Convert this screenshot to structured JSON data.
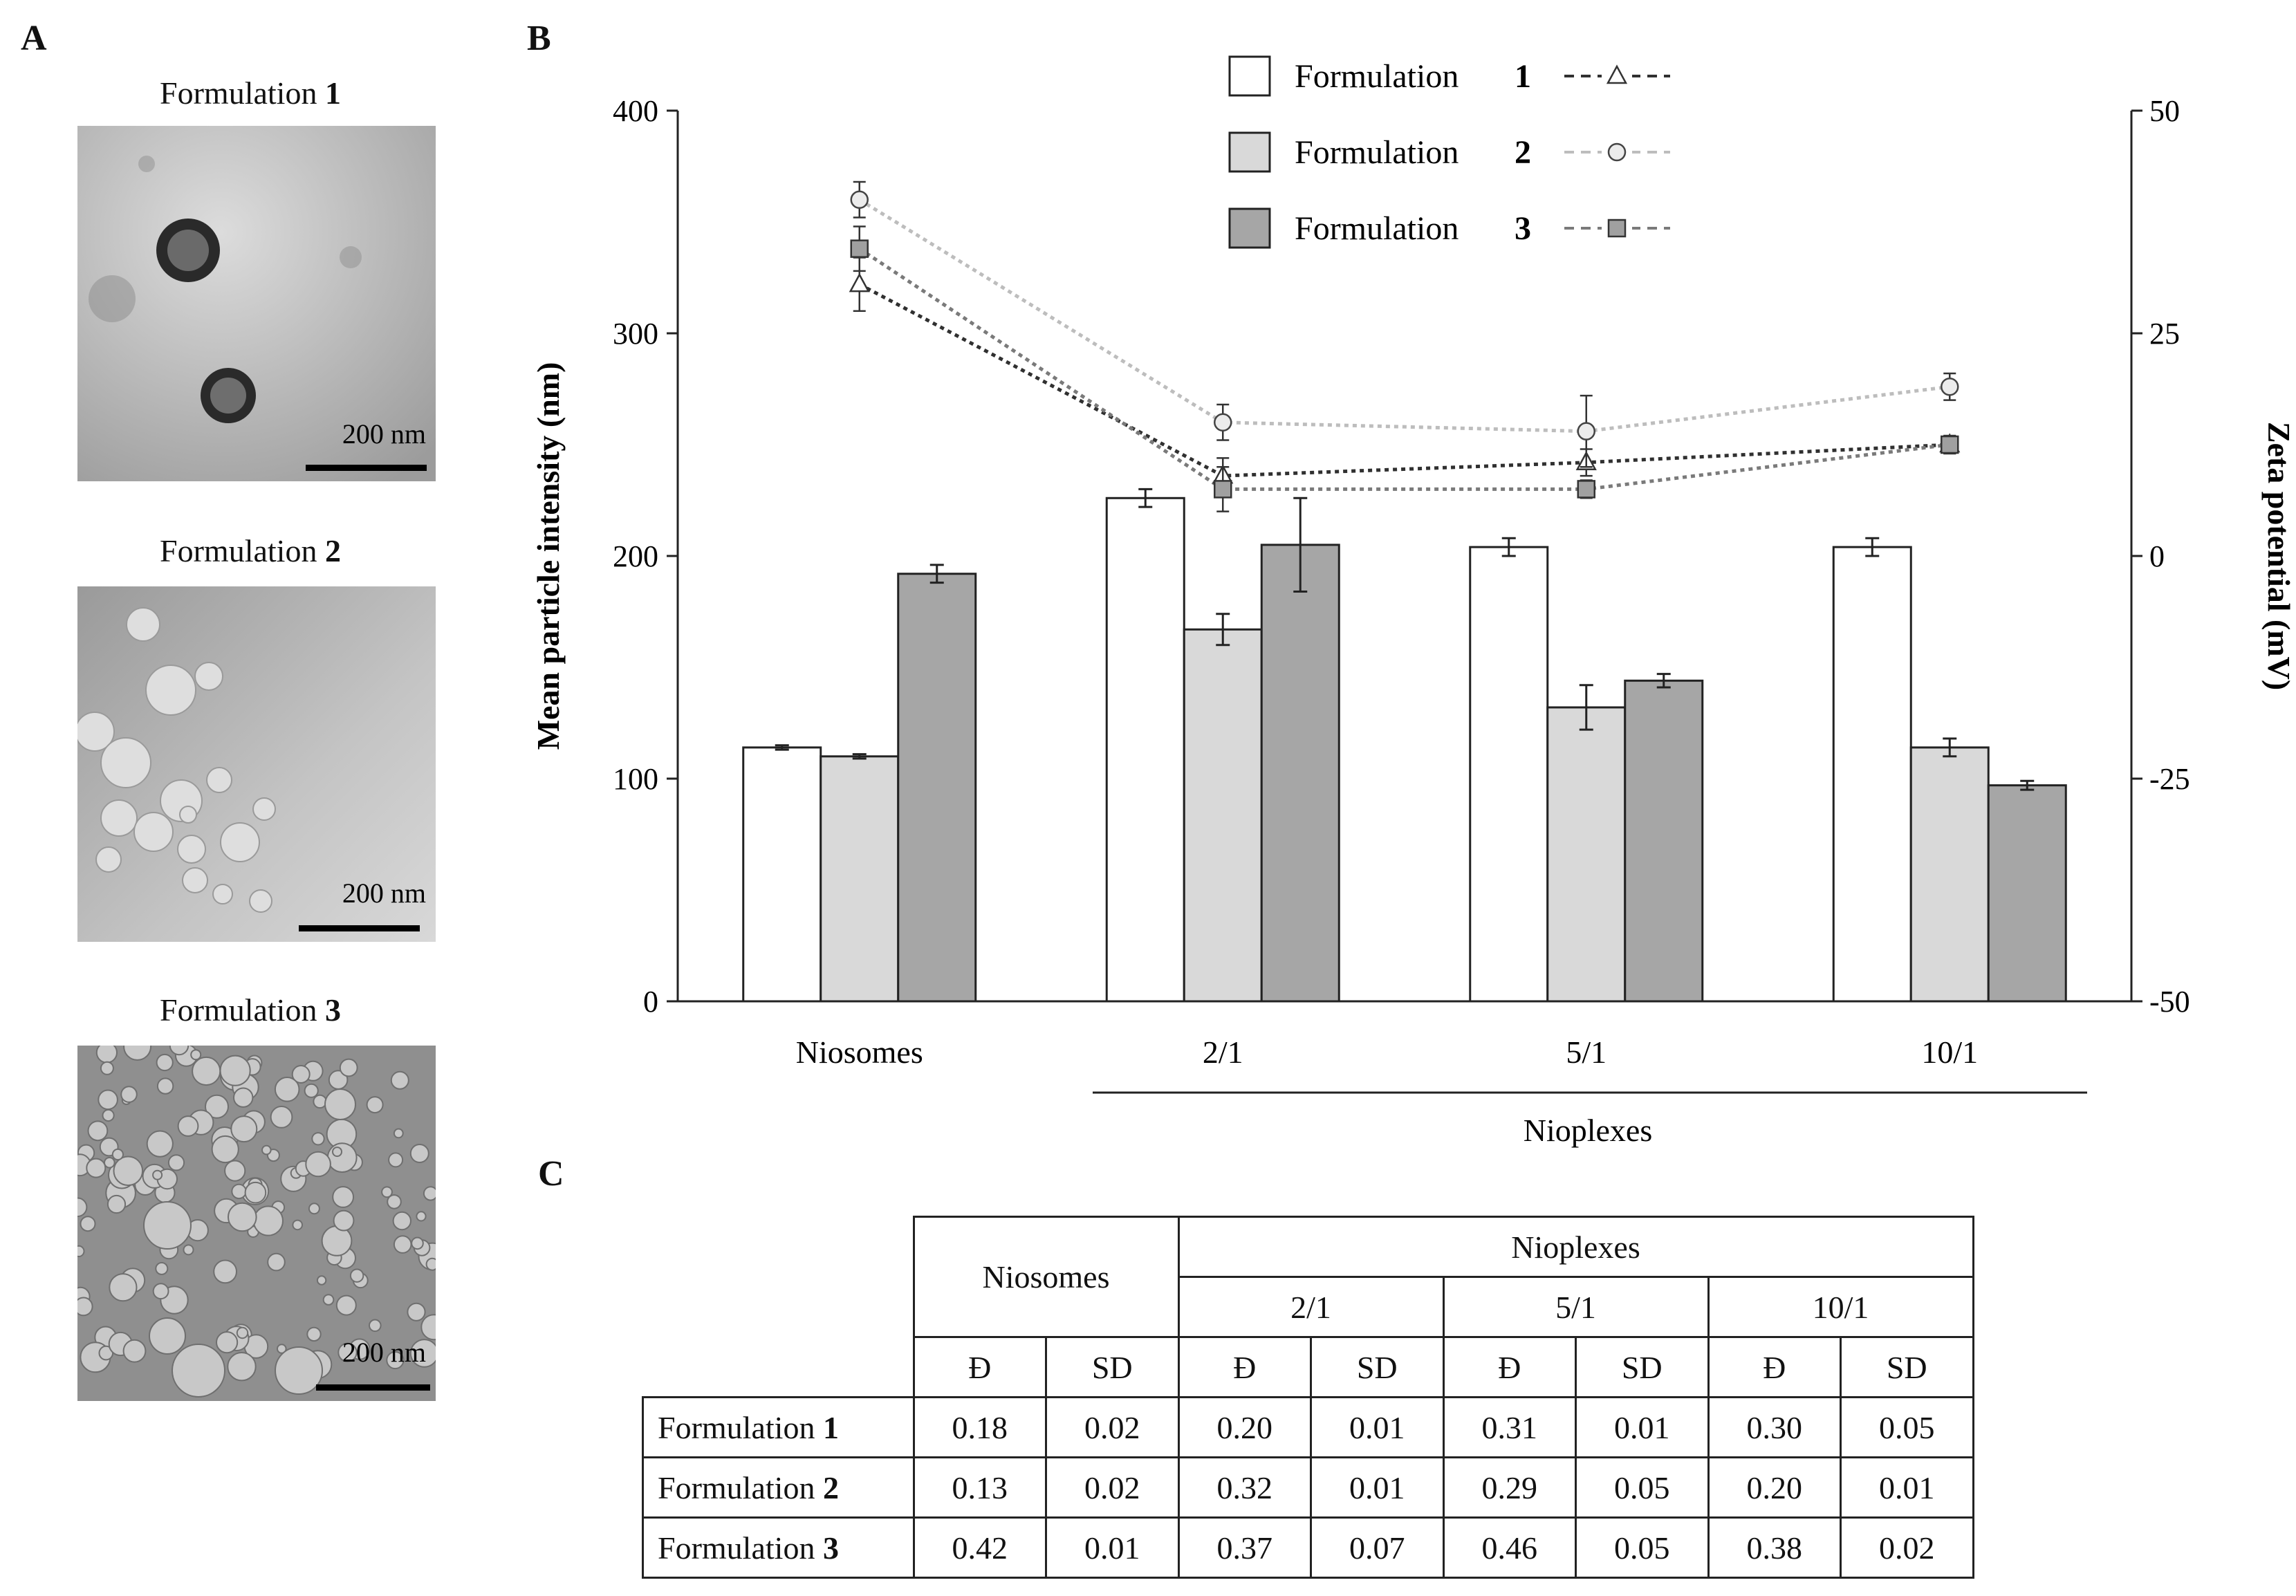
{
  "panel_letters": {
    "a": "A",
    "b": "B",
    "c": "C"
  },
  "tem_panels": [
    {
      "title": "Formulation",
      "num": "1",
      "scale_label": "200 nm"
    },
    {
      "title": "Formulation",
      "num": "2",
      "scale_label": "200 nm"
    },
    {
      "title": "Formulation",
      "num": "3",
      "scale_label": "200 nm"
    }
  ],
  "colors": {
    "f1_bar": "#ffffff",
    "f2_bar": "#d9d9d9",
    "f3_bar": "#a6a6a6",
    "f1_line": "#303030",
    "f2_line": "#bdbdbd",
    "f3_line": "#7a7a7a",
    "f3_marker": "#a0a0a0",
    "axis": "#222222"
  },
  "chart_data": {
    "type": "bar",
    "categories": [
      "Niosomes",
      "2/1",
      "5/1",
      "10/1"
    ],
    "group_label": "Nioplexes",
    "ylabel": "Mean particle intensity (nm)",
    "y2label": "Zeta potential (mV)",
    "ylim": [
      0,
      400
    ],
    "y2lim": [
      -50,
      50
    ],
    "yticks": [
      "0",
      "100",
      "200",
      "300",
      "400"
    ],
    "y2ticks": [
      "-50",
      "-25",
      "0",
      "25",
      "50"
    ],
    "legend": [
      {
        "label": "Formulation",
        "num": "1"
      },
      {
        "label": "Formulation",
        "num": "2"
      },
      {
        "label": "Formulation",
        "num": "3"
      }
    ],
    "series": [
      {
        "name": "Formulation 1",
        "values": [
          114,
          226,
          204,
          204
        ],
        "errors": [
          1,
          4,
          4,
          4
        ]
      },
      {
        "name": "Formulation 2",
        "values": [
          110,
          167,
          132,
          114
        ],
        "errors": [
          1,
          7,
          10,
          4
        ]
      },
      {
        "name": "Formulation 3",
        "values": [
          192,
          205,
          144,
          97
        ],
        "errors": [
          4,
          21,
          3,
          2
        ]
      }
    ],
    "zeta_series": [
      {
        "name": "Formulation 1",
        "marker": "triangle",
        "values": [
          30.5,
          9,
          10.5,
          12.5
        ],
        "errors": [
          3,
          2,
          1.5,
          1
        ]
      },
      {
        "name": "Formulation 2",
        "marker": "circle",
        "values": [
          40,
          15,
          14,
          19
        ],
        "errors": [
          2,
          2,
          4,
          1.5
        ]
      },
      {
        "name": "Formulation 3",
        "marker": "square",
        "values": [
          34.5,
          7.5,
          7.5,
          12.5
        ],
        "errors": [
          2.5,
          2.5,
          1,
          1
        ]
      }
    ]
  },
  "table": {
    "niosomes": "Niosomes",
    "nioplexes": "Nioplexes",
    "ratios": [
      "2/1",
      "5/1",
      "10/1"
    ],
    "sub_headers": [
      "Đ",
      "SD"
    ],
    "rows": [
      {
        "label": "Formulation",
        "num": "1",
        "values": [
          "0.18",
          "0.02",
          "0.20",
          "0.01",
          "0.31",
          "0.01",
          "0.30",
          "0.05"
        ]
      },
      {
        "label": "Formulation",
        "num": "2",
        "values": [
          "0.13",
          "0.02",
          "0.32",
          "0.01",
          "0.29",
          "0.05",
          "0.20",
          "0.01"
        ]
      },
      {
        "label": "Formulation",
        "num": "3",
        "values": [
          "0.42",
          "0.01",
          "0.37",
          "0.07",
          "0.46",
          "0.05",
          "0.38",
          "0.02"
        ]
      }
    ]
  }
}
